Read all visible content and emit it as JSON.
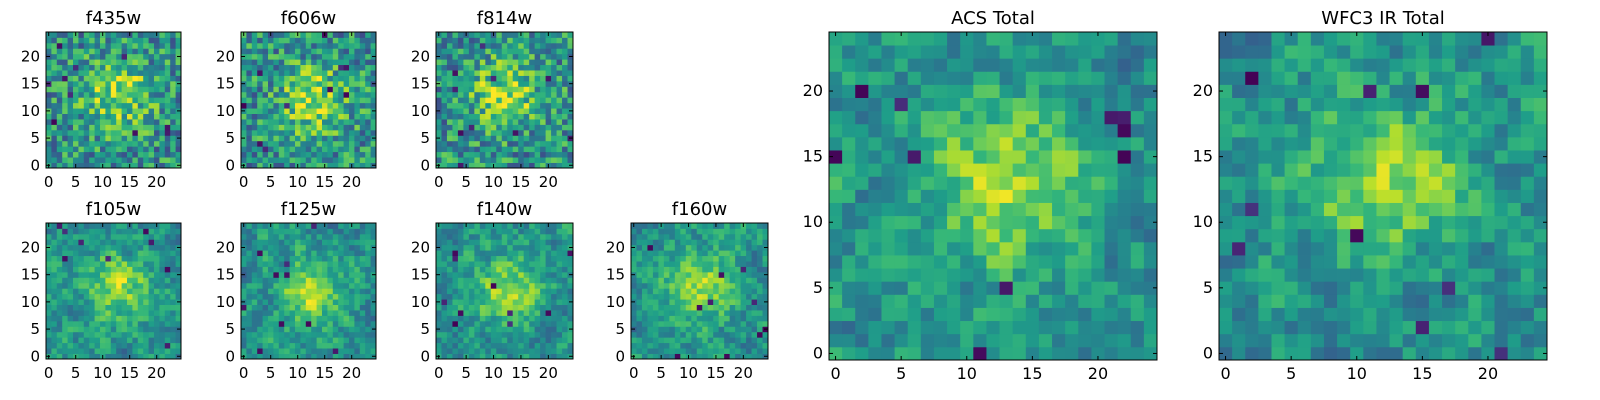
{
  "figure": {
    "panel_titles": [
      "f435w",
      "f606w",
      "f814w",
      "f105w",
      "f125w",
      "f140w",
      "f160w",
      "ACS Total",
      "WFC3 IR Total"
    ]
  },
  "chart_data": [
    {
      "type": "heatmap",
      "title": "f435w",
      "grid_size": [
        25,
        25
      ],
      "xlim": [
        0,
        24
      ],
      "ylim": [
        0,
        24
      ],
      "xticks": [
        0,
        5,
        10,
        15,
        20
      ],
      "yticks": [
        0,
        5,
        10,
        15,
        20
      ],
      "colormap": "viridis",
      "value_range": [
        0,
        1
      ],
      "peak_xy": [
        13,
        13
      ],
      "values": "per-pixel noise image (values not recoverable)"
    },
    {
      "type": "heatmap",
      "title": "f606w",
      "grid_size": [
        25,
        25
      ],
      "xlim": [
        0,
        24
      ],
      "ylim": [
        0,
        24
      ],
      "xticks": [
        0,
        5,
        10,
        15,
        20
      ],
      "yticks": [
        0,
        5,
        10,
        15,
        20
      ],
      "colormap": "viridis",
      "value_range": [
        0,
        1
      ],
      "peak_xy": [
        13,
        12
      ],
      "values": "per-pixel noise image (values not recoverable)"
    },
    {
      "type": "heatmap",
      "title": "f814w",
      "grid_size": [
        25,
        25
      ],
      "xlim": [
        0,
        24
      ],
      "ylim": [
        0,
        24
      ],
      "xticks": [
        0,
        5,
        10,
        15,
        20
      ],
      "yticks": [
        0,
        5,
        10,
        15,
        20
      ],
      "colormap": "viridis",
      "value_range": [
        0,
        1
      ],
      "peak_xy": [
        12,
        13
      ],
      "values": "per-pixel noise image (values not recoverable)"
    },
    {
      "type": "heatmap",
      "title": "f105w",
      "grid_size": [
        25,
        25
      ],
      "xlim": [
        0,
        24
      ],
      "ylim": [
        0,
        24
      ],
      "xticks": [
        0,
        5,
        10,
        15,
        20
      ],
      "yticks": [
        0,
        5,
        10,
        15,
        20
      ],
      "colormap": "viridis",
      "value_range": [
        0,
        1
      ],
      "peak_xy": [
        13,
        13
      ],
      "values": "per-pixel noise image (values not recoverable)"
    },
    {
      "type": "heatmap",
      "title": "f125w",
      "grid_size": [
        25,
        25
      ],
      "xlim": [
        0,
        24
      ],
      "ylim": [
        0,
        24
      ],
      "xticks": [
        0,
        5,
        10,
        15,
        20
      ],
      "yticks": [
        0,
        5,
        10,
        15,
        20
      ],
      "colormap": "viridis",
      "value_range": [
        0,
        1
      ],
      "peak_xy": [
        12,
        12
      ],
      "values": "per-pixel noise image (values not recoverable)"
    },
    {
      "type": "heatmap",
      "title": "f140w",
      "grid_size": [
        25,
        25
      ],
      "xlim": [
        0,
        24
      ],
      "ylim": [
        0,
        24
      ],
      "xticks": [
        0,
        5,
        10,
        15,
        20
      ],
      "yticks": [
        0,
        5,
        10,
        15,
        20
      ],
      "colormap": "viridis",
      "value_range": [
        0,
        1
      ],
      "peak_xy": [
        13,
        12
      ],
      "values": "per-pixel noise image (values not recoverable)"
    },
    {
      "type": "heatmap",
      "title": "f160w",
      "grid_size": [
        25,
        25
      ],
      "xlim": [
        0,
        24
      ],
      "ylim": [
        0,
        24
      ],
      "xticks": [
        0,
        5,
        10,
        15,
        20
      ],
      "yticks": [
        0,
        5,
        10,
        15,
        20
      ],
      "colormap": "viridis",
      "value_range": [
        0,
        1
      ],
      "peak_xy": [
        12,
        13
      ],
      "values": "per-pixel noise image (values not recoverable)"
    },
    {
      "type": "heatmap",
      "title": "ACS Total",
      "grid_size": [
        25,
        25
      ],
      "xlim": [
        0,
        24
      ],
      "ylim": [
        0,
        24
      ],
      "xticks": [
        0,
        5,
        10,
        15,
        20
      ],
      "yticks": [
        0,
        5,
        10,
        15,
        20
      ],
      "colormap": "viridis",
      "value_range": [
        0,
        1
      ],
      "peak_xy": [
        13,
        13
      ],
      "values": "per-pixel noise image (values not recoverable)"
    },
    {
      "type": "heatmap",
      "title": "WFC3 IR Total",
      "grid_size": [
        25,
        25
      ],
      "xlim": [
        0,
        24
      ],
      "ylim": [
        0,
        24
      ],
      "xticks": [
        0,
        5,
        10,
        15,
        20
      ],
      "yticks": [
        0,
        5,
        10,
        15,
        20
      ],
      "colormap": "viridis",
      "value_range": [
        0,
        1
      ],
      "peak_xy": [
        12,
        13
      ],
      "values": "per-pixel noise image (values not recoverable)"
    }
  ]
}
